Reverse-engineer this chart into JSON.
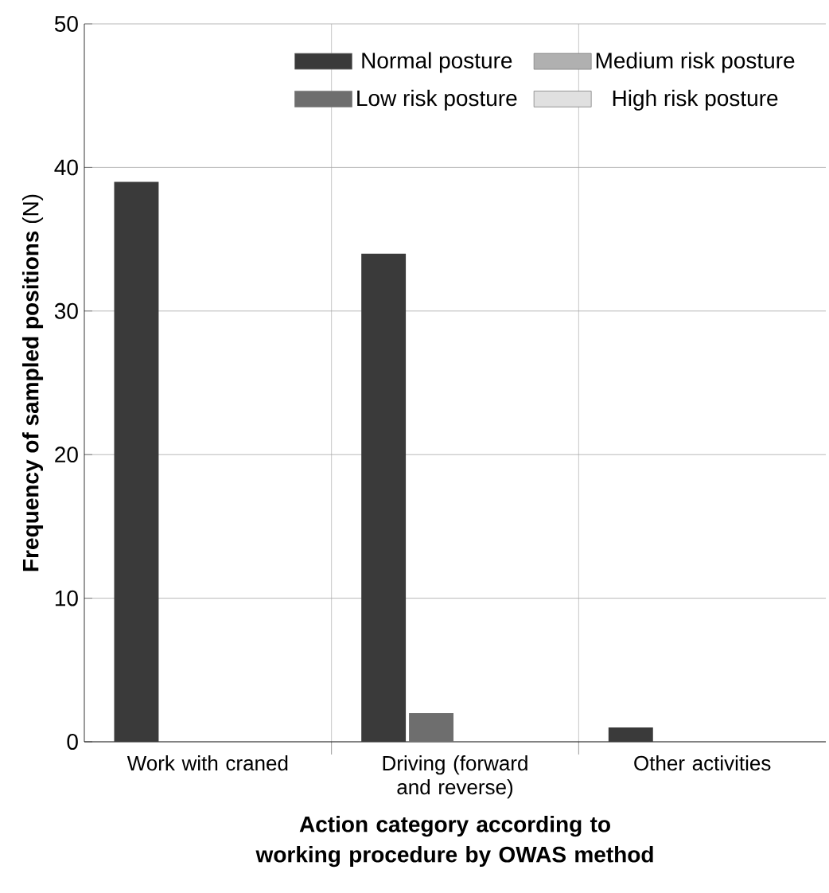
{
  "chart_data": {
    "type": "bar",
    "xlabel": "Action category according to working procedure by OWAS method",
    "ylabel": "**Frequency of sampled positions** (N)",
    "categories": [
      "Work with craned",
      "Driving (forward and reverse)",
      "Other activities"
    ],
    "series": [
      {
        "name": "Normal posture",
        "color": "#3a3a3a",
        "values": [
          39,
          34,
          1
        ]
      },
      {
        "name": "Low risk posture",
        "color": "#6e6e6e",
        "values": [
          0,
          2,
          0
        ]
      },
      {
        "name": "Medium risk posture",
        "color": "#b0b0b0",
        "values": [
          0,
          0,
          0
        ]
      },
      {
        "name": "High risk posture",
        "color": "#e0e0e0",
        "values": [
          0,
          0,
          0
        ]
      }
    ],
    "ylim": [
      0,
      50
    ],
    "yticks": [
      0,
      10,
      20,
      30,
      40,
      50
    ],
    "grid": true,
    "legend": "top right"
  }
}
